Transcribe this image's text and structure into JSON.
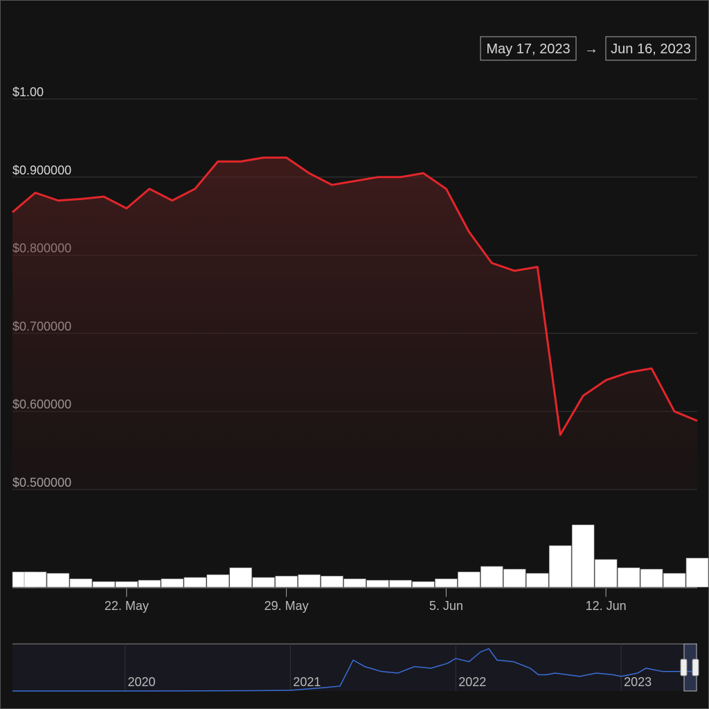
{
  "range": {
    "from": "May 17, 2023",
    "separator": "→",
    "to": "Jun 16, 2023"
  },
  "chart_data": [
    {
      "type": "line",
      "color": "#e3262b",
      "x": [
        "2023-05-17",
        "2023-05-18",
        "2023-05-19",
        "2023-05-20",
        "2023-05-21",
        "2023-05-22",
        "2023-05-23",
        "2023-05-24",
        "2023-05-25",
        "2023-05-26",
        "2023-05-27",
        "2023-05-28",
        "2023-05-29",
        "2023-05-30",
        "2023-05-31",
        "2023-06-01",
        "2023-06-02",
        "2023-06-03",
        "2023-06-04",
        "2023-06-05",
        "2023-06-06",
        "2023-06-07",
        "2023-06-08",
        "2023-06-09",
        "2023-06-10",
        "2023-06-11",
        "2023-06-12",
        "2023-06-13",
        "2023-06-14",
        "2023-06-15",
        "2023-06-16"
      ],
      "values": [
        0.855,
        0.88,
        0.87,
        0.872,
        0.875,
        0.86,
        0.885,
        0.87,
        0.885,
        0.92,
        0.92,
        0.925,
        0.925,
        0.905,
        0.89,
        0.895,
        0.9,
        0.9,
        0.905,
        0.885,
        0.83,
        0.79,
        0.78,
        0.785,
        0.57,
        0.62,
        0.64,
        0.65,
        0.655,
        0.6,
        0.588
      ],
      "xlim": [
        "2023-05-17",
        "2023-06-16"
      ],
      "xticks": [
        {
          "value": "2023-05-22",
          "label": "22. May"
        },
        {
          "value": "2023-05-29",
          "label": "29. May"
        },
        {
          "value": "2023-06-05",
          "label": "5. Jun"
        },
        {
          "value": "2023-06-12",
          "label": "12. Jun"
        }
      ],
      "ylim": [
        0.5,
        1.0
      ],
      "yticks": [
        {
          "value": 0.5,
          "label": "$0.500000"
        },
        {
          "value": 0.6,
          "label": "$0.600000"
        },
        {
          "value": 0.7,
          "label": "$0.700000"
        },
        {
          "value": 0.8,
          "label": "$0.800000"
        },
        {
          "value": 0.9,
          "label": "$0.900000"
        },
        {
          "value": 1.0,
          "label": "$1.00"
        }
      ],
      "grid": true
    },
    {
      "type": "bar",
      "color": "#ffffff",
      "x": [
        "2023-05-17",
        "2023-05-18",
        "2023-05-19",
        "2023-05-20",
        "2023-05-21",
        "2023-05-22",
        "2023-05-23",
        "2023-05-24",
        "2023-05-25",
        "2023-05-26",
        "2023-05-27",
        "2023-05-28",
        "2023-05-29",
        "2023-05-30",
        "2023-05-31",
        "2023-06-01",
        "2023-06-02",
        "2023-06-03",
        "2023-06-04",
        "2023-06-05",
        "2023-06-06",
        "2023-06-07",
        "2023-06-08",
        "2023-06-09",
        "2023-06-10",
        "2023-06-11",
        "2023-06-12",
        "2023-06-13",
        "2023-06-14",
        "2023-06-15",
        "2023-06-16"
      ],
      "values": [
        22,
        22,
        20,
        12,
        8,
        8,
        10,
        12,
        14,
        18,
        28,
        14,
        16,
        18,
        16,
        12,
        10,
        10,
        8,
        12,
        22,
        30,
        26,
        20,
        60,
        90,
        40,
        28,
        26,
        20,
        42
      ]
    },
    {
      "type": "line",
      "color": "#3a6fd8",
      "x": [
        2019.32,
        2020.0,
        2020.8,
        2021.0,
        2021.2,
        2021.3,
        2021.38,
        2021.45,
        2021.55,
        2021.65,
        2021.75,
        2021.85,
        2021.95,
        2022.0,
        2022.08,
        2022.15,
        2022.2,
        2022.25,
        2022.35,
        2022.45,
        2022.5,
        2022.55,
        2022.6,
        2022.75,
        2022.85,
        2022.95,
        2023.0,
        2023.1,
        2023.15,
        2023.25,
        2023.35,
        2023.42,
        2023.46
      ],
      "values": [
        0,
        0,
        0.01,
        0.02,
        0.1,
        0.15,
        0.95,
        0.75,
        0.6,
        0.55,
        0.75,
        0.7,
        0.85,
        1.0,
        0.9,
        1.2,
        1.3,
        0.95,
        0.9,
        0.7,
        0.5,
        0.5,
        0.55,
        0.45,
        0.55,
        0.5,
        0.45,
        0.55,
        0.7,
        0.6,
        0.6,
        0.6,
        0.55
      ],
      "xlim": [
        2019.32,
        2023.46
      ],
      "xticks": [
        2020,
        2021,
        2022,
        2023
      ]
    }
  ]
}
